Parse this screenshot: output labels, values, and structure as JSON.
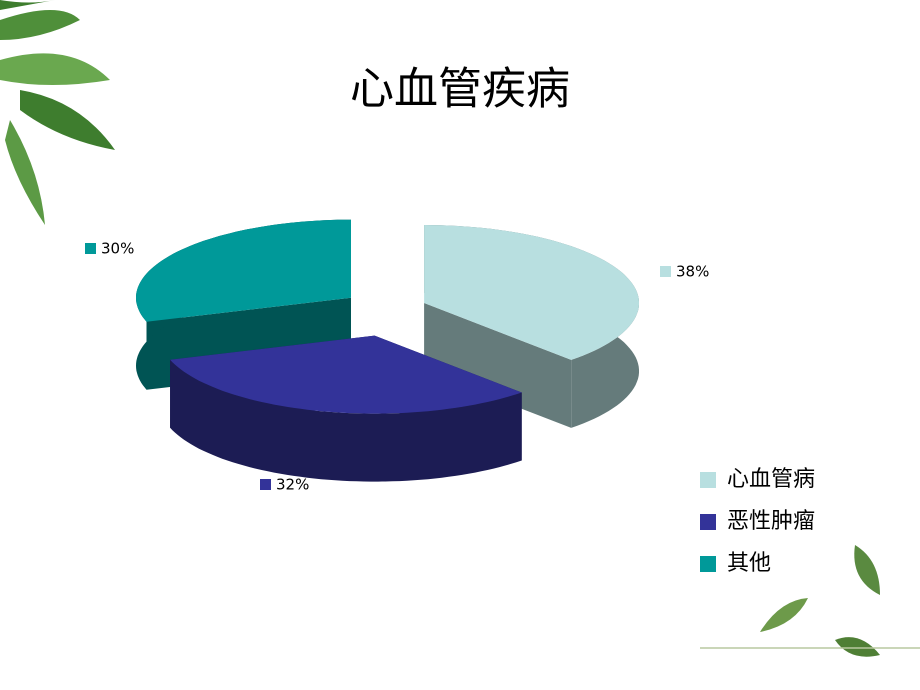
{
  "chart_data": {
    "type": "pie",
    "title": "心血管疾病",
    "categories": [
      "心血管病",
      "恶性肿瘤",
      "其他"
    ],
    "values": [
      38,
      32,
      30
    ],
    "value_labels": [
      "38%",
      "32%",
      "30%"
    ],
    "colors": [
      "#b8dfe0",
      "#333399",
      "#009999"
    ],
    "legend": "lower right"
  }
}
